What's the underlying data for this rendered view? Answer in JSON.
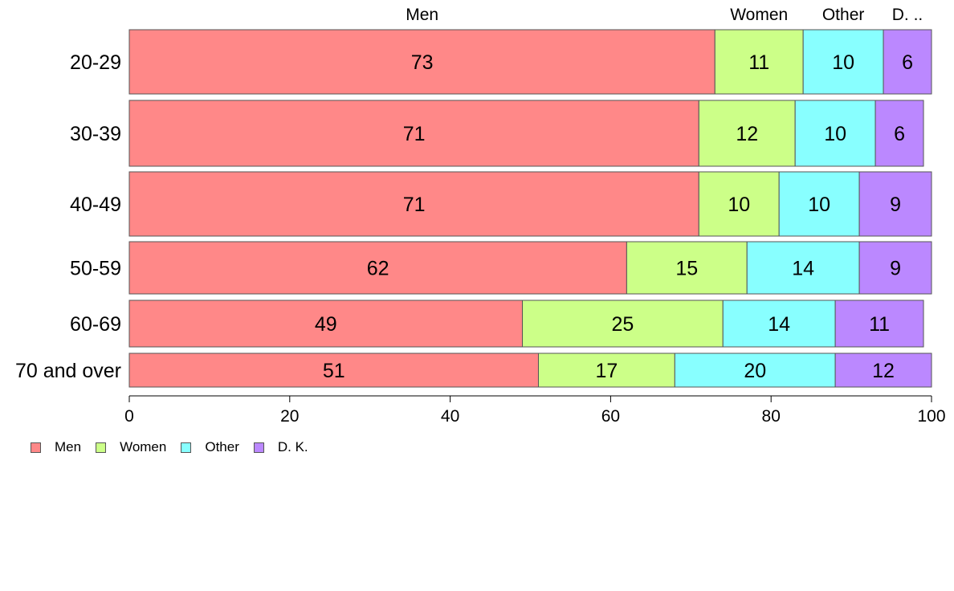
{
  "chart_data": {
    "type": "bar",
    "orientation": "horizontal",
    "stacked": true,
    "categories": [
      "20-29",
      "30-39",
      "40-49",
      "50-59",
      "60-69",
      "70 and over"
    ],
    "series": [
      {
        "name": "Men",
        "color": "#ff8888",
        "values": [
          73,
          71,
          71,
          62,
          49,
          51
        ]
      },
      {
        "name": "Women",
        "color": "#ccff88",
        "values": [
          11,
          12,
          10,
          15,
          25,
          17
        ]
      },
      {
        "name": "Other",
        "color": "#88ffff",
        "values": [
          10,
          10,
          10,
          14,
          14,
          20
        ]
      },
      {
        "name": "D. K.",
        "color": "#bb88ff",
        "values": [
          6,
          6,
          9,
          9,
          11,
          12
        ]
      }
    ],
    "top_labels": [
      "Men",
      "Women",
      "Other",
      "D. .."
    ],
    "x_ticks": [
      0,
      20,
      40,
      60,
      80,
      100
    ],
    "xlim": [
      0,
      100
    ],
    "grid": false,
    "legend_position": "bottom-left"
  },
  "legend": {
    "items": [
      {
        "label": "Men",
        "color": "#ff8888"
      },
      {
        "label": "Women",
        "color": "#ccff88"
      },
      {
        "label": "Other",
        "color": "#88ffff"
      },
      {
        "label": "D. K.",
        "color": "#bb88ff"
      }
    ]
  }
}
